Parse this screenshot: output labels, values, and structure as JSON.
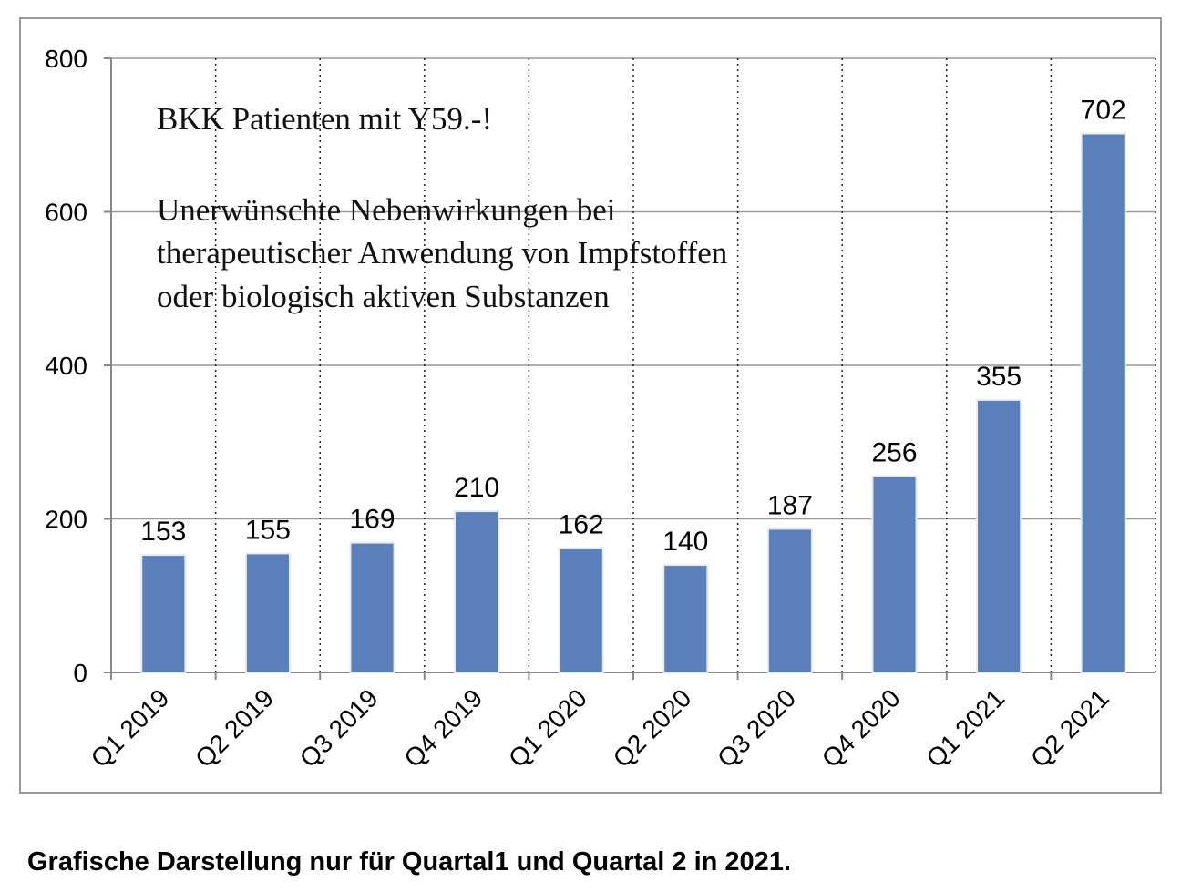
{
  "chart_data": {
    "type": "bar",
    "annotations": [
      "BKK Patienten mit Y59.-!",
      "Unerwünschte Nebenwirkungen bei",
      "therapeutischer Anwendung von Impfstoffen",
      "oder biologisch aktiven Substanzen"
    ],
    "categories": [
      "Q1 2019",
      "Q2 2019",
      "Q3 2019",
      "Q4 2019",
      "Q1 2020",
      "Q2 2020",
      "Q3 2020",
      "Q4 2020",
      "Q1 2021",
      "Q2 2021"
    ],
    "values": [
      153,
      155,
      169,
      210,
      162,
      140,
      187,
      256,
      355,
      702
    ],
    "color": "#5b7fbb",
    "ylim": [
      0,
      800
    ],
    "yticks": [
      0,
      200,
      400,
      600,
      800
    ],
    "grid": true,
    "caption": "Grafische Darstellung nur für Quartal1 und Quartal 2 in 2021."
  }
}
